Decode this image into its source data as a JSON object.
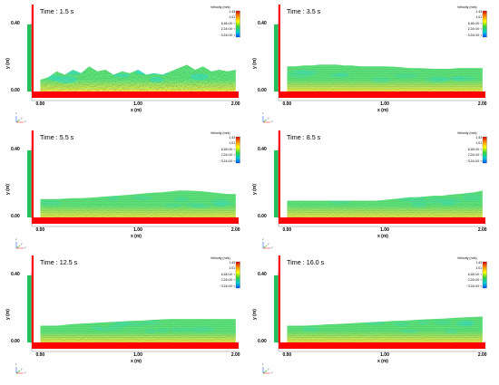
{
  "figure": {
    "panels": [
      {
        "time_label": "Time : 1.5 s",
        "profile": [
          0.07,
          0.085,
          0.12,
          0.1,
          0.13,
          0.11,
          0.15,
          0.12,
          0.13,
          0.1,
          0.12,
          0.11,
          0.13,
          0.1,
          0.11,
          0.1,
          0.12,
          0.14,
          0.16,
          0.13,
          0.15,
          0.12,
          0.13,
          0.12,
          0.13
        ]
      },
      {
        "time_label": "Time : 3.5 s",
        "profile": [
          0.15,
          0.15,
          0.155,
          0.155,
          0.16,
          0.16,
          0.16,
          0.155,
          0.155,
          0.15,
          0.15,
          0.15,
          0.15,
          0.148,
          0.145,
          0.14,
          0.14,
          0.138,
          0.135,
          0.135,
          0.135,
          0.14,
          0.14,
          0.14,
          0.14
        ]
      },
      {
        "time_label": "Time : 5.5 s",
        "profile": [
          0.11,
          0.11,
          0.11,
          0.112,
          0.115,
          0.115,
          0.118,
          0.12,
          0.125,
          0.128,
          0.132,
          0.135,
          0.14,
          0.145,
          0.148,
          0.15,
          0.155,
          0.16,
          0.16,
          0.158,
          0.155,
          0.15,
          0.145,
          0.14,
          0.14
        ]
      },
      {
        "time_label": "Time : 8.5 s",
        "profile": [
          0.1,
          0.1,
          0.1,
          0.1,
          0.1,
          0.1,
          0.1,
          0.1,
          0.1,
          0.1,
          0.1,
          0.1,
          0.105,
          0.11,
          0.115,
          0.12,
          0.12,
          0.125,
          0.13,
          0.13,
          0.135,
          0.14,
          0.145,
          0.15,
          0.16
        ]
      },
      {
        "time_label": "Time : 12.5 s",
        "profile": [
          0.1,
          0.1,
          0.1,
          0.105,
          0.11,
          0.112,
          0.115,
          0.118,
          0.12,
          0.122,
          0.125,
          0.128,
          0.13,
          0.132,
          0.135,
          0.138,
          0.14,
          0.14,
          0.14,
          0.14,
          0.14,
          0.14,
          0.14,
          0.14,
          0.14
        ]
      },
      {
        "time_label": "Time : 16.0 s",
        "profile": [
          0.1,
          0.1,
          0.1,
          0.102,
          0.105,
          0.108,
          0.11,
          0.112,
          0.115,
          0.118,
          0.12,
          0.122,
          0.125,
          0.128,
          0.13,
          0.132,
          0.135,
          0.138,
          0.14,
          0.142,
          0.145,
          0.148,
          0.15,
          0.152,
          0.155
        ]
      }
    ],
    "legend": {
      "title": "Velocity (m/s)",
      "ticks": [
        "1.43",
        "1.01",
        "6.18×10⁻¹",
        "2.24×10⁻¹",
        "−3.24×10⁻²"
      ],
      "colors": [
        "#d60000",
        "#ff8c00",
        "#ffff00",
        "#39d439",
        "#00d0d0",
        "#0050ff"
      ]
    },
    "axes": {
      "ylabel": "y (m)",
      "xlabel": "x (m)",
      "yticks": [
        "0.40",
        "0.00"
      ],
      "xticks": [
        "0.00",
        "1.00",
        "2.00"
      ],
      "y_range": [
        -0.05,
        0.5
      ],
      "x_range": [
        -0.06,
        2.02
      ]
    },
    "triad_labels": [
      "z",
      "x",
      "y"
    ],
    "colors": {
      "channel_floor": "#ff0000",
      "gate": "#ff0000",
      "reservoir": "#22c05a",
      "water_main": "#5be07a",
      "water_fast": "#e8e84a",
      "water_slow": "#30d8c8"
    }
  }
}
